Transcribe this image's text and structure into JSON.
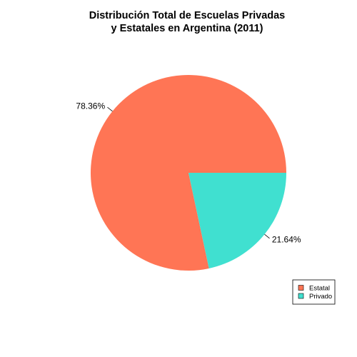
{
  "chart_data": {
    "type": "pie",
    "title": [
      "Distribución Total de Escuelas Privadas",
      "y Estatales en Argentina (2011)"
    ],
    "slices": [
      {
        "label": "Estatal",
        "value": 78.36,
        "display": "78.36%",
        "color": "#FF7555"
      },
      {
        "label": "Privado",
        "value": 21.64,
        "display": "21.64%",
        "color": "#40E0D0"
      }
    ],
    "legend": {
      "placement": "bottom-right",
      "entries": [
        "Estatal",
        "Privado"
      ]
    }
  }
}
